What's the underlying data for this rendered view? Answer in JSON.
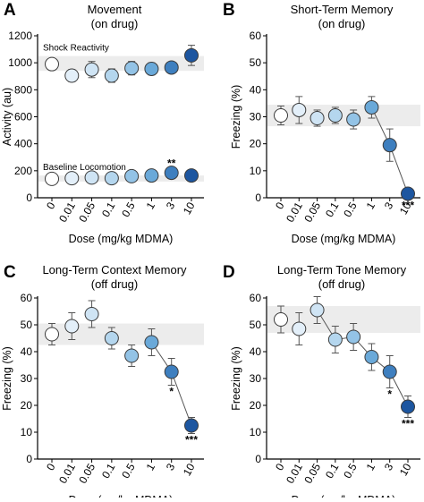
{
  "chart_data": [
    {
      "panel": "A",
      "type": "line",
      "title": "Movement",
      "subtitle": "(on drug)",
      "xlabel": "Dose (mg/kg MDMA)",
      "ylabel": "Activity (au)",
      "categories": [
        "0",
        "0.01",
        "0.05",
        "0.1",
        "0.5",
        "1",
        "3",
        "10"
      ],
      "ylim": [
        0,
        1200
      ],
      "yticks": [
        "0",
        "200",
        "400",
        "600",
        "800",
        "1000",
        "1200"
      ],
      "series": [
        {
          "name": "Shock Reactivity",
          "values": [
            990,
            905,
            950,
            905,
            960,
            955,
            965,
            1055
          ],
          "errors": [
            30,
            45,
            60,
            50,
            50,
            45,
            40,
            75
          ],
          "stars": [
            "",
            "",
            "",
            "",
            "",
            "",
            "",
            ""
          ],
          "shaded_range": [
            940,
            1050
          ],
          "connected": false
        },
        {
          "name": "Baseline Locomotion",
          "values": [
            140,
            145,
            150,
            145,
            160,
            165,
            185,
            165
          ],
          "errors": [
            20,
            20,
            20,
            20,
            25,
            25,
            25,
            20
          ],
          "stars": [
            "",
            "",
            "",
            "",
            "",
            "",
            "**",
            ""
          ],
          "shaded_range": [
            120,
            165
          ],
          "connected": false
        }
      ]
    },
    {
      "panel": "B",
      "type": "line",
      "title": "Short-Term Memory",
      "subtitle": "(on drug)",
      "xlabel": "Dose (mg/kg MDMA)",
      "ylabel": "Freezing (%)",
      "categories": [
        "0",
        "0.01",
        "0.05",
        "0.1",
        "0.5",
        "1",
        "3",
        "10"
      ],
      "ylim": [
        0,
        60
      ],
      "yticks": [
        "0",
        "10",
        "20",
        "30",
        "40",
        "50",
        "60"
      ],
      "series": [
        {
          "values": [
            30.5,
            32.5,
            29.5,
            30.5,
            29,
            33.5,
            19.5,
            1.5
          ],
          "errors": [
            3.5,
            5,
            3,
            3,
            3.5,
            4,
            6,
            2
          ],
          "stars": [
            "",
            "",
            "",
            "",
            "",
            "",
            "",
            "***"
          ],
          "shaded_range": [
            26.5,
            34.5
          ],
          "connected": true,
          "connect_from": 5
        }
      ]
    },
    {
      "panel": "C",
      "type": "line",
      "title": "Long-Term Context Memory",
      "subtitle": "(off drug)",
      "xlabel": "Dose (mg/kg MDMA)",
      "ylabel": "Freezing (%)",
      "categories": [
        "0",
        "0.01",
        "0.05",
        "0.1",
        "0.5",
        "1",
        "3",
        "10"
      ],
      "ylim": [
        0,
        60
      ],
      "yticks": [
        "0",
        "10",
        "20",
        "30",
        "40",
        "50",
        "60"
      ],
      "series": [
        {
          "values": [
            46.5,
            49.5,
            54,
            45,
            38.5,
            43.5,
            32.5,
            12.5
          ],
          "errors": [
            4,
            5,
            5,
            4,
            4,
            5,
            5,
            3
          ],
          "stars": [
            "",
            "",
            "",
            "",
            "",
            "",
            "*",
            "***"
          ],
          "shaded_range": [
            42.5,
            50.5
          ],
          "connected": true,
          "connect_from": 5
        }
      ]
    },
    {
      "panel": "D",
      "type": "line",
      "title": "Long-Term Tone Memory",
      "subtitle": "(off drug)",
      "xlabel": "Dose (mg/kg MDMA)",
      "ylabel": "Freezing (%)",
      "categories": [
        "0",
        "0.01",
        "0.05",
        "0.1",
        "0.5",
        "1",
        "3",
        "10"
      ],
      "ylim": [
        0,
        60
      ],
      "yticks": [
        "0",
        "10",
        "20",
        "30",
        "40",
        "50",
        "60"
      ],
      "series": [
        {
          "values": [
            52,
            48.5,
            55.5,
            44.5,
            45.5,
            38,
            32.5,
            19.5
          ],
          "errors": [
            5,
            6,
            5,
            5,
            5,
            5,
            6,
            4
          ],
          "stars": [
            "",
            "",
            "",
            "",
            "",
            "",
            "*",
            "***"
          ],
          "shaded_range": [
            47,
            57
          ],
          "connected": true,
          "connect_from": 2
        }
      ]
    }
  ],
  "colors": {
    "dose_fill": [
      "#ffffff",
      "#e3eff9",
      "#cfe4f4",
      "#b4d6ee",
      "#93c3e6",
      "#6aa9d9",
      "#3e7fbf",
      "#1d56a0"
    ],
    "shade": "#ececec",
    "marker_stroke": "#3a3a3a"
  }
}
